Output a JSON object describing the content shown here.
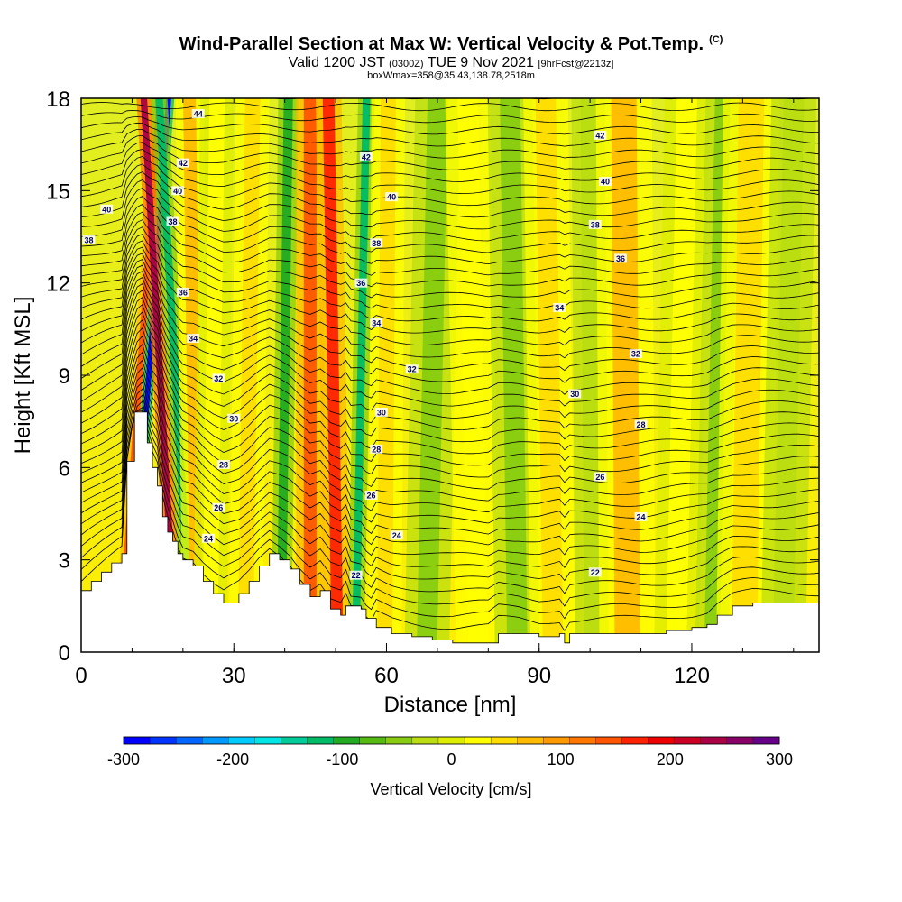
{
  "title": {
    "main": "Wind-Parallel Section at Max W: Vertical Velocity & Pot.Temp.",
    "copyright": "(C)",
    "valid_prefix": "Valid 1200 JST",
    "valid_z": "(0300Z)",
    "valid_date": "TUE 9 Nov 2021",
    "fcst": "[9hrFcst@2213z]",
    "box": "boxWmax=358@35.43,138.78,2518m"
  },
  "chart_data": {
    "type": "heatmap",
    "xlabel": "Distance [nm]",
    "ylabel": "Height [Kft MSL]",
    "xlim": [
      0,
      145
    ],
    "ylim": [
      0,
      18
    ],
    "x_ticks": [
      0,
      30,
      60,
      90,
      120
    ],
    "y_ticks": [
      0,
      3,
      6,
      9,
      12,
      15,
      18
    ],
    "colorbar": {
      "label": "Vertical Velocity [cm/s]",
      "ticks": [
        -300,
        -200,
        -100,
        0,
        100,
        200,
        300
      ],
      "colors": [
        "#0000ff",
        "#0033ff",
        "#0066ff",
        "#0099ff",
        "#00ccff",
        "#00e5e5",
        "#00cc99",
        "#00bb66",
        "#22aa22",
        "#55bb11",
        "#88cc11",
        "#bbdd11",
        "#ddee00",
        "#ffff00",
        "#ffdd00",
        "#ffbb00",
        "#ff9900",
        "#ff7700",
        "#ff5500",
        "#ff2200",
        "#ee0000",
        "#cc0022",
        "#aa0044",
        "#880066",
        "#660088"
      ]
    },
    "bands": [
      {
        "x": 11.5,
        "w": 1.2,
        "v": 140
      },
      {
        "x": 13.3,
        "w": 1.0,
        "v": -280
      },
      {
        "x": 15.5,
        "w": 1.3,
        "v": 250
      },
      {
        "x": 18.5,
        "w": 1.5,
        "v": -130
      },
      {
        "x": 22,
        "w": 2.5,
        "v": 70
      },
      {
        "x": 26,
        "w": 3,
        "v": 20
      },
      {
        "x": 33,
        "w": 3,
        "v": 40
      },
      {
        "x": 40,
        "w": 1.8,
        "v": -90
      },
      {
        "x": 45,
        "w": 2.5,
        "v": 140
      },
      {
        "x": 49.5,
        "w": 2.3,
        "v": 170
      },
      {
        "x": 55,
        "w": 1.5,
        "v": -110
      },
      {
        "x": 60,
        "w": 3,
        "v": 50
      },
      {
        "x": 69,
        "w": 4,
        "v": -40
      },
      {
        "x": 77,
        "w": 4,
        "v": 30
      },
      {
        "x": 85,
        "w": 4,
        "v": -50
      },
      {
        "x": 92,
        "w": 4,
        "v": 40
      },
      {
        "x": 100,
        "w": 3,
        "v": -30
      },
      {
        "x": 107,
        "w": 5,
        "v": 60
      },
      {
        "x": 118,
        "w": 4,
        "v": 25
      },
      {
        "x": 125,
        "w": 3,
        "v": -45
      },
      {
        "x": 131,
        "w": 5,
        "v": 55
      },
      {
        "x": 139,
        "w": 4,
        "v": -30
      }
    ],
    "theta_contours": {
      "levels": [
        22,
        24,
        26,
        28,
        30,
        32,
        34,
        36,
        38,
        40,
        42,
        44
      ],
      "labels": [
        {
          "x": 54,
          "y": 2.5,
          "t": "22"
        },
        {
          "x": 101,
          "y": 2.6,
          "t": "22"
        },
        {
          "x": 25,
          "y": 3.7,
          "t": "24"
        },
        {
          "x": 62,
          "y": 3.8,
          "t": "24"
        },
        {
          "x": 110,
          "y": 4.4,
          "t": "24"
        },
        {
          "x": 27,
          "y": 4.7,
          "t": "26"
        },
        {
          "x": 57,
          "y": 5.1,
          "t": "26"
        },
        {
          "x": 102,
          "y": 5.7,
          "t": "26"
        },
        {
          "x": 28,
          "y": 6.1,
          "t": "28"
        },
        {
          "x": 58,
          "y": 6.6,
          "t": "28"
        },
        {
          "x": 110,
          "y": 7.4,
          "t": "28"
        },
        {
          "x": 30,
          "y": 7.6,
          "t": "30"
        },
        {
          "x": 59,
          "y": 7.8,
          "t": "30"
        },
        {
          "x": 97,
          "y": 8.4,
          "t": "30"
        },
        {
          "x": 27,
          "y": 8.9,
          "t": "32"
        },
        {
          "x": 65,
          "y": 9.2,
          "t": "32"
        },
        {
          "x": 109,
          "y": 9.7,
          "t": "32"
        },
        {
          "x": 22,
          "y": 10.2,
          "t": "34"
        },
        {
          "x": 58,
          "y": 10.7,
          "t": "34"
        },
        {
          "x": 94,
          "y": 11.2,
          "t": "34"
        },
        {
          "x": 20,
          "y": 11.7,
          "t": "36"
        },
        {
          "x": 55,
          "y": 12.0,
          "t": "36"
        },
        {
          "x": 106,
          "y": 12.8,
          "t": "36"
        },
        {
          "x": 18,
          "y": 14.0,
          "t": "38"
        },
        {
          "x": 58,
          "y": 13.3,
          "t": "38"
        },
        {
          "x": 101,
          "y": 13.9,
          "t": "38"
        },
        {
          "x": 5,
          "y": 14.4,
          "t": "40"
        },
        {
          "x": 19,
          "y": 15.0,
          "t": "40"
        },
        {
          "x": 61,
          "y": 14.8,
          "t": "40"
        },
        {
          "x": 103,
          "y": 15.3,
          "t": "40"
        },
        {
          "x": 20,
          "y": 15.9,
          "t": "42"
        },
        {
          "x": 56,
          "y": 16.1,
          "t": "42"
        },
        {
          "x": 102,
          "y": 16.8,
          "t": "42"
        },
        {
          "x": 23,
          "y": 17.5,
          "t": "44"
        },
        {
          "x": 1.5,
          "y": 13.4,
          "t": "38"
        }
      ]
    },
    "terrain": [
      [
        0,
        2.0
      ],
      [
        2,
        2.3
      ],
      [
        4,
        2.6
      ],
      [
        6,
        2.9
      ],
      [
        8,
        3.2
      ],
      [
        9,
        6.2
      ],
      [
        10.5,
        7.8
      ],
      [
        12.5,
        7.8
      ],
      [
        13,
        6.8
      ],
      [
        14,
        6.0
      ],
      [
        15,
        5.4
      ],
      [
        16,
        4.4
      ],
      [
        17,
        3.9
      ],
      [
        18,
        3.6
      ],
      [
        19,
        3.2
      ],
      [
        20,
        3.0
      ],
      [
        22,
        2.8
      ],
      [
        24,
        2.3
      ],
      [
        26,
        1.9
      ],
      [
        28,
        1.6
      ],
      [
        31,
        1.9
      ],
      [
        33,
        2.3
      ],
      [
        35,
        2.8
      ],
      [
        37,
        3.2
      ],
      [
        39,
        3.0
      ],
      [
        41,
        2.7
      ],
      [
        43,
        2.2
      ],
      [
        45,
        1.8
      ],
      [
        47,
        2.0
      ],
      [
        49,
        1.4
      ],
      [
        51,
        1.2
      ],
      [
        52,
        1.5
      ],
      [
        55,
        1.4
      ],
      [
        56,
        1.1
      ],
      [
        58,
        0.8
      ],
      [
        61,
        0.6
      ],
      [
        65,
        0.5
      ],
      [
        69,
        0.4
      ],
      [
        73,
        0.3
      ],
      [
        77,
        0.3
      ],
      [
        80,
        0.3
      ],
      [
        82,
        0.6
      ],
      [
        86,
        0.6
      ],
      [
        90,
        0.5
      ],
      [
        94,
        0.6
      ],
      [
        95,
        0.3
      ],
      [
        96,
        0.6
      ],
      [
        100,
        0.6
      ],
      [
        110,
        0.6
      ],
      [
        115,
        0.7
      ],
      [
        120,
        0.8
      ],
      [
        123,
        0.9
      ],
      [
        125,
        1.2
      ],
      [
        128,
        1.5
      ],
      [
        132,
        1.6
      ],
      [
        140,
        1.6
      ],
      [
        145,
        1.6
      ]
    ]
  }
}
